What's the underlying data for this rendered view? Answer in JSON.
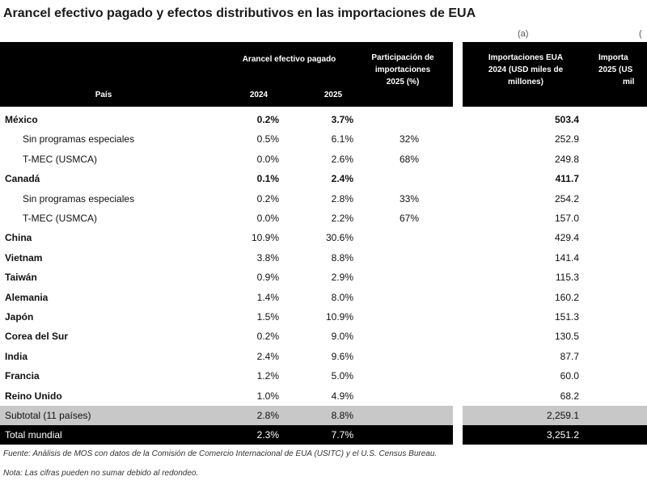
{
  "title": "Arancel efectivo pagado y efectos distributivos en las importaciones de EUA",
  "column_letters": {
    "imports_2024": "(a)",
    "imports_2025": "("
  },
  "header": {
    "pais": "País",
    "arancel_group": "Arancel efectivo pagado",
    "year_2024": "2024",
    "year_2025": "2025",
    "participacion": [
      "Participación de",
      "importaciones",
      "2025 (%)"
    ],
    "imports_2024": [
      "Importaciones EUA",
      "2024 (USD miles de",
      "millones)"
    ],
    "imports_2025": [
      "Importa",
      "2025 (US",
      "mil"
    ]
  },
  "rows": [
    {
      "name": "México",
      "a2024": "0.2%",
      "a2025": "3.7%",
      "part": "",
      "imp2024": "503.4",
      "style": "bold"
    },
    {
      "name": "Sin programas especiales",
      "a2024": "0.5%",
      "a2025": "6.1%",
      "part": "32%",
      "imp2024": "252.9",
      "style": "sub"
    },
    {
      "name": "T-MEC (USMCA)",
      "a2024": "0.0%",
      "a2025": "2.6%",
      "part": "68%",
      "imp2024": "249.8",
      "style": "sub"
    },
    {
      "name": "Canadá",
      "a2024": "0.1%",
      "a2025": "2.4%",
      "part": "",
      "imp2024": "411.7",
      "style": "bold"
    },
    {
      "name": "Sin programas especiales",
      "a2024": "0.2%",
      "a2025": "2.8%",
      "part": "33%",
      "imp2024": "254.2",
      "style": "sub"
    },
    {
      "name": "T-MEC (USMCA)",
      "a2024": "0.0%",
      "a2025": "2.2%",
      "part": "67%",
      "imp2024": "157.0",
      "style": "sub"
    },
    {
      "name": "China",
      "a2024": "10.9%",
      "a2025": "30.6%",
      "part": "",
      "imp2024": "429.4",
      "style": "country"
    },
    {
      "name": "Vietnam",
      "a2024": "3.8%",
      "a2025": "8.8%",
      "part": "",
      "imp2024": "141.4",
      "style": "country"
    },
    {
      "name": "Taiwán",
      "a2024": "0.9%",
      "a2025": "2.9%",
      "part": "",
      "imp2024": "115.3",
      "style": "country"
    },
    {
      "name": "Alemania",
      "a2024": "1.4%",
      "a2025": "8.0%",
      "part": "",
      "imp2024": "160.2",
      "style": "country"
    },
    {
      "name": "Japón",
      "a2024": "1.5%",
      "a2025": "10.9%",
      "part": "",
      "imp2024": "151.3",
      "style": "country"
    },
    {
      "name": "Corea del Sur",
      "a2024": "0.2%",
      "a2025": "9.0%",
      "part": "",
      "imp2024": "130.5",
      "style": "country"
    },
    {
      "name": "India",
      "a2024": "2.4%",
      "a2025": "9.6%",
      "part": "",
      "imp2024": "87.7",
      "style": "country"
    },
    {
      "name": "Francia",
      "a2024": "1.2%",
      "a2025": "5.0%",
      "part": "",
      "imp2024": "60.0",
      "style": "country"
    },
    {
      "name": "Reino Unido",
      "a2024": "1.0%",
      "a2025": "4.9%",
      "part": "",
      "imp2024": "68.2",
      "style": "country"
    },
    {
      "name": "Subtotal (11 países)",
      "a2024": "2.8%",
      "a2025": "8.8%",
      "part": "",
      "imp2024": "2,259.1",
      "style": "subtotal"
    },
    {
      "name": "Total mundial",
      "a2024": "2.3%",
      "a2025": "7.7%",
      "part": "",
      "imp2024": "3,251.2",
      "style": "total"
    }
  ],
  "footnotes": {
    "fuente": "Fuente: Análisis de MOS con datos de la Comisión de Comercio Internacional de EUA (USITC) y el U.S. Census Bureau.",
    "nota": "Nota: Las cifras pueden no sumar debido al redondeo."
  }
}
